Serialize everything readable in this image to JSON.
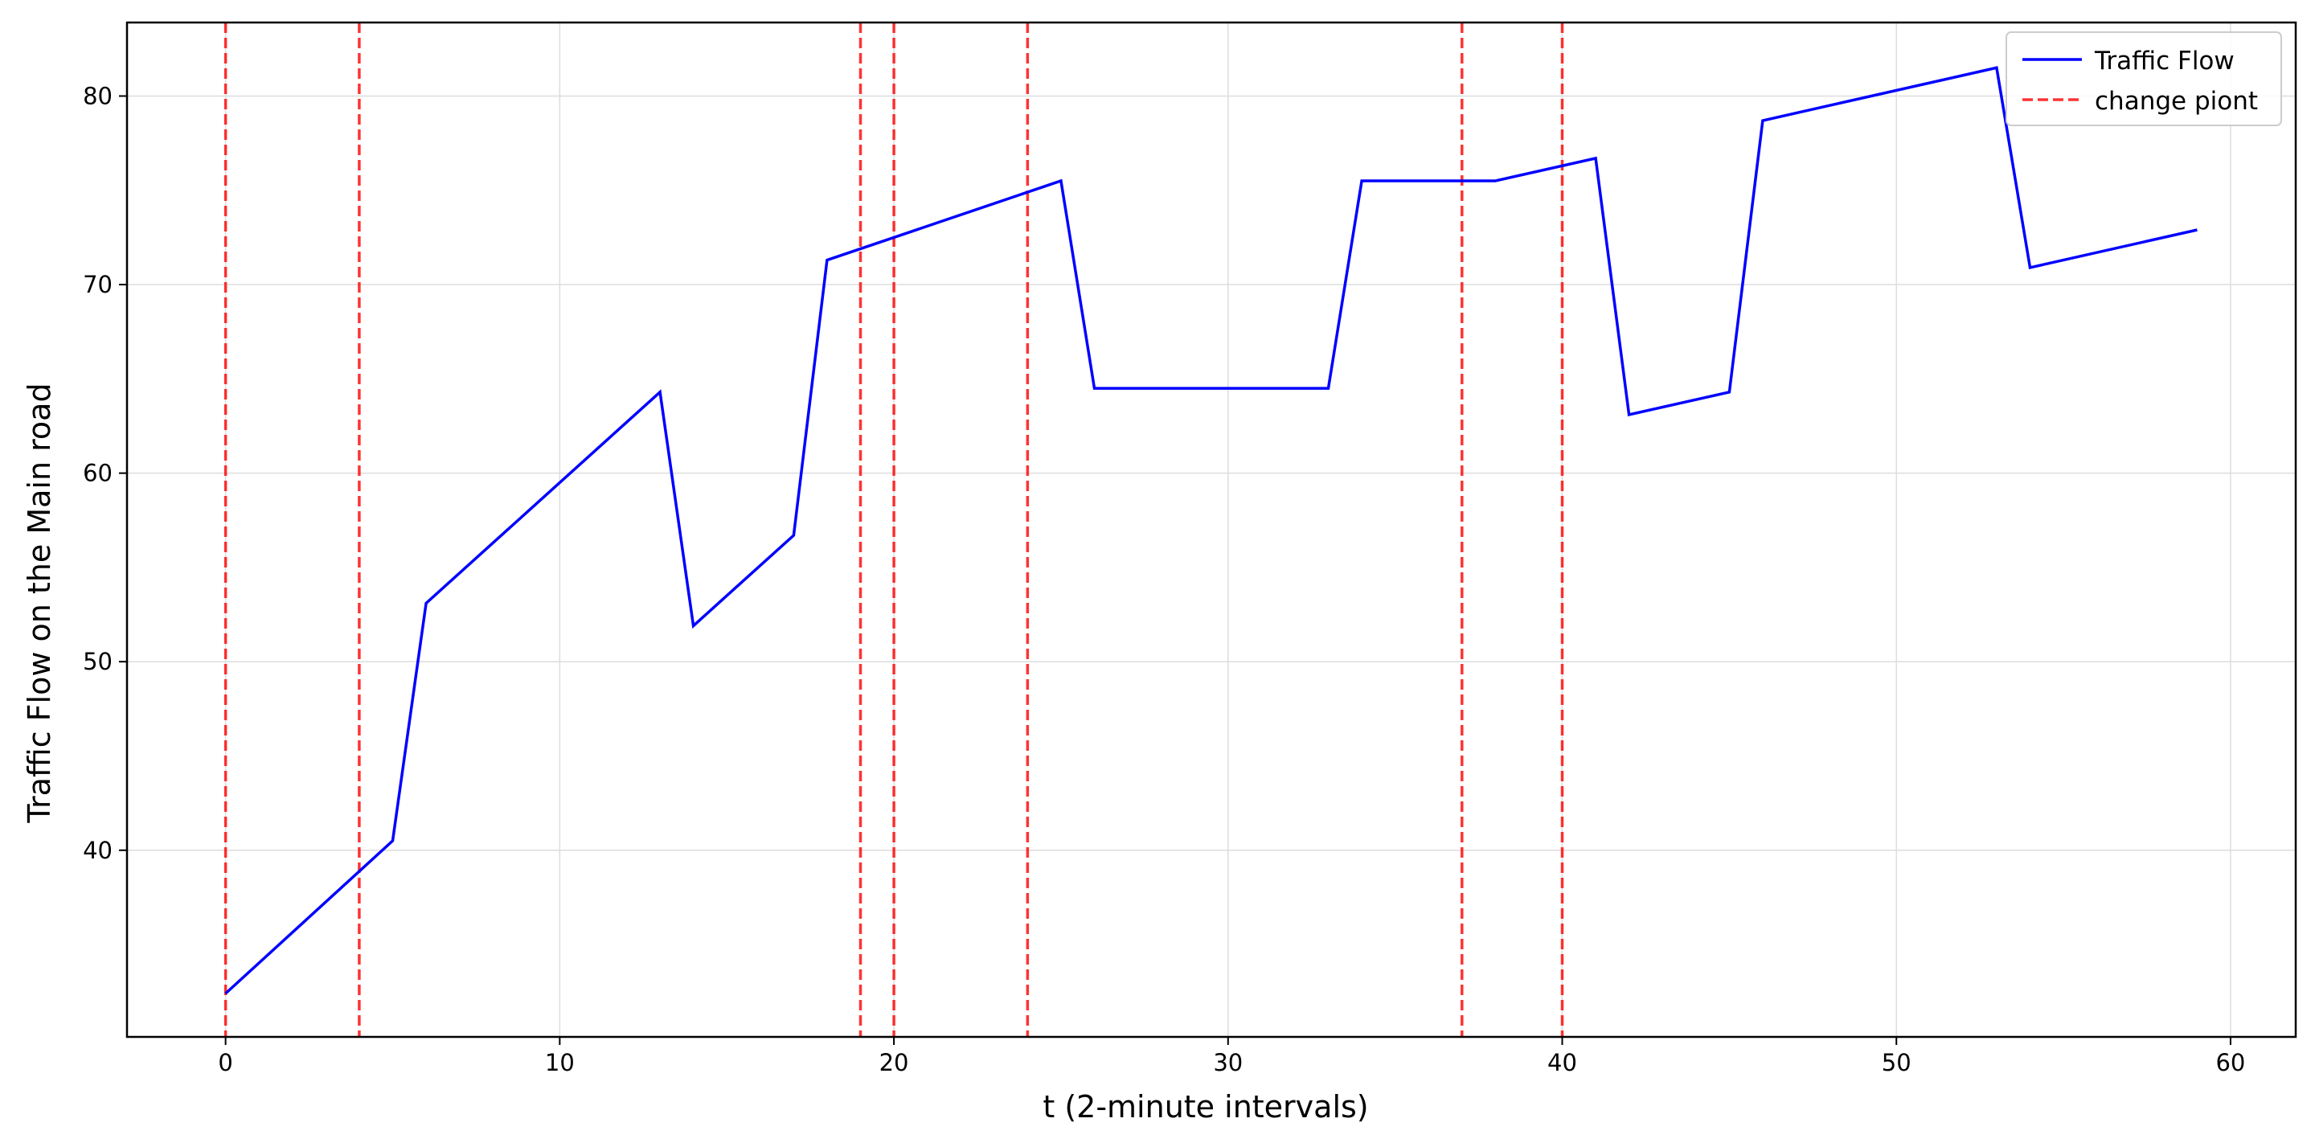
{
  "chart_data": {
    "type": "line",
    "title": "",
    "xlabel": "t  (2-minute intervals)",
    "ylabel": "Traffic Flow  on the Main road",
    "xlim": [
      -2.95,
      61.95
    ],
    "ylim": [
      30.1,
      83.9
    ],
    "xticks": [
      0,
      10,
      20,
      30,
      40,
      50,
      60
    ],
    "yticks": [
      40,
      50,
      60,
      70,
      80
    ],
    "grid": true,
    "legend_position": "top-right",
    "series": [
      {
        "name": "Traffic Flow",
        "color": "#0000ff",
        "style": "solid",
        "x": [
          0,
          5,
          6,
          13,
          14,
          17,
          18,
          25,
          26,
          33,
          34,
          38,
          41,
          42,
          45,
          46,
          53,
          54,
          59
        ],
        "y": [
          32.4,
          40.5,
          53.1,
          64.3,
          51.9,
          56.7,
          71.3,
          75.5,
          64.5,
          64.5,
          75.5,
          75.5,
          76.7,
          63.1,
          64.3,
          78.7,
          81.5,
          70.9,
          72.9
        ]
      }
    ],
    "change_points": {
      "name": "change piont",
      "color": "#ff0000",
      "style": "dashed",
      "x": [
        0,
        4,
        19,
        20,
        24,
        37,
        40
      ]
    }
  }
}
